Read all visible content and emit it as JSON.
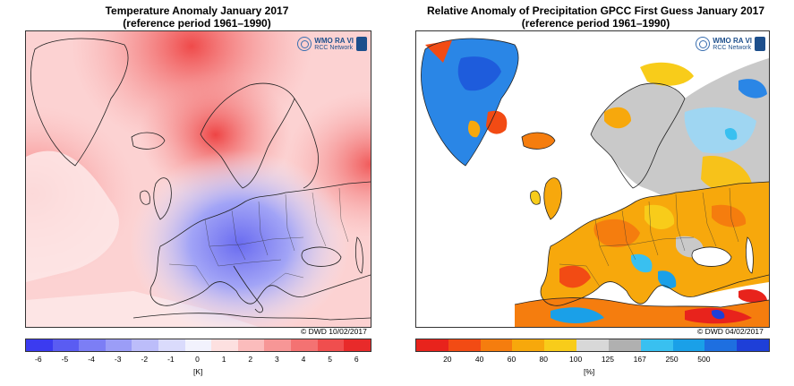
{
  "left_map": {
    "title_line1": "Temperature Anomaly January 2017",
    "title_line2": "(reference period 1961–1990)",
    "logo_text_1": "WMO RA VI",
    "logo_text_2": "RCC Network",
    "credit": "© DWD 10/02/2017",
    "unit": "[K]",
    "colorbar_ticks": [
      "-6",
      "-5",
      "-4",
      "-3",
      "-2",
      "-1",
      "0",
      "1",
      "2",
      "3",
      "4",
      "5",
      "6"
    ],
    "colorbar_colors": [
      "#3b3bf0",
      "#5a5cf2",
      "#7c7ef5",
      "#9b9df7",
      "#bcbdfa",
      "#dadbfc",
      "#f2f2fd",
      "#fde0e0",
      "#fbbcbc",
      "#f79696",
      "#f47272",
      "#f04e4e",
      "#e82a2a"
    ]
  },
  "right_map": {
    "title_line1": "Relative Anomaly of Precipitation GPCC First Guess January 2017",
    "title_line2": "(reference period 1961–1990)",
    "logo_text_1": "WMO RA VI",
    "logo_text_2": "RCC Network",
    "credit": "© DWD 04/02/2017",
    "unit": "[%]",
    "colorbar_ticks": [
      "20",
      "40",
      "60",
      "80",
      "100",
      "125",
      "167",
      "250",
      "500"
    ],
    "colorbar_colors": [
      "#e8231c",
      "#f24b14",
      "#f57d0e",
      "#f7a80c",
      "#f8cc1a",
      "#d8d8d8",
      "#b0b0b0",
      "#39c0f0",
      "#1aa0e8",
      "#1e6fe0",
      "#1e3fd8"
    ]
  }
}
